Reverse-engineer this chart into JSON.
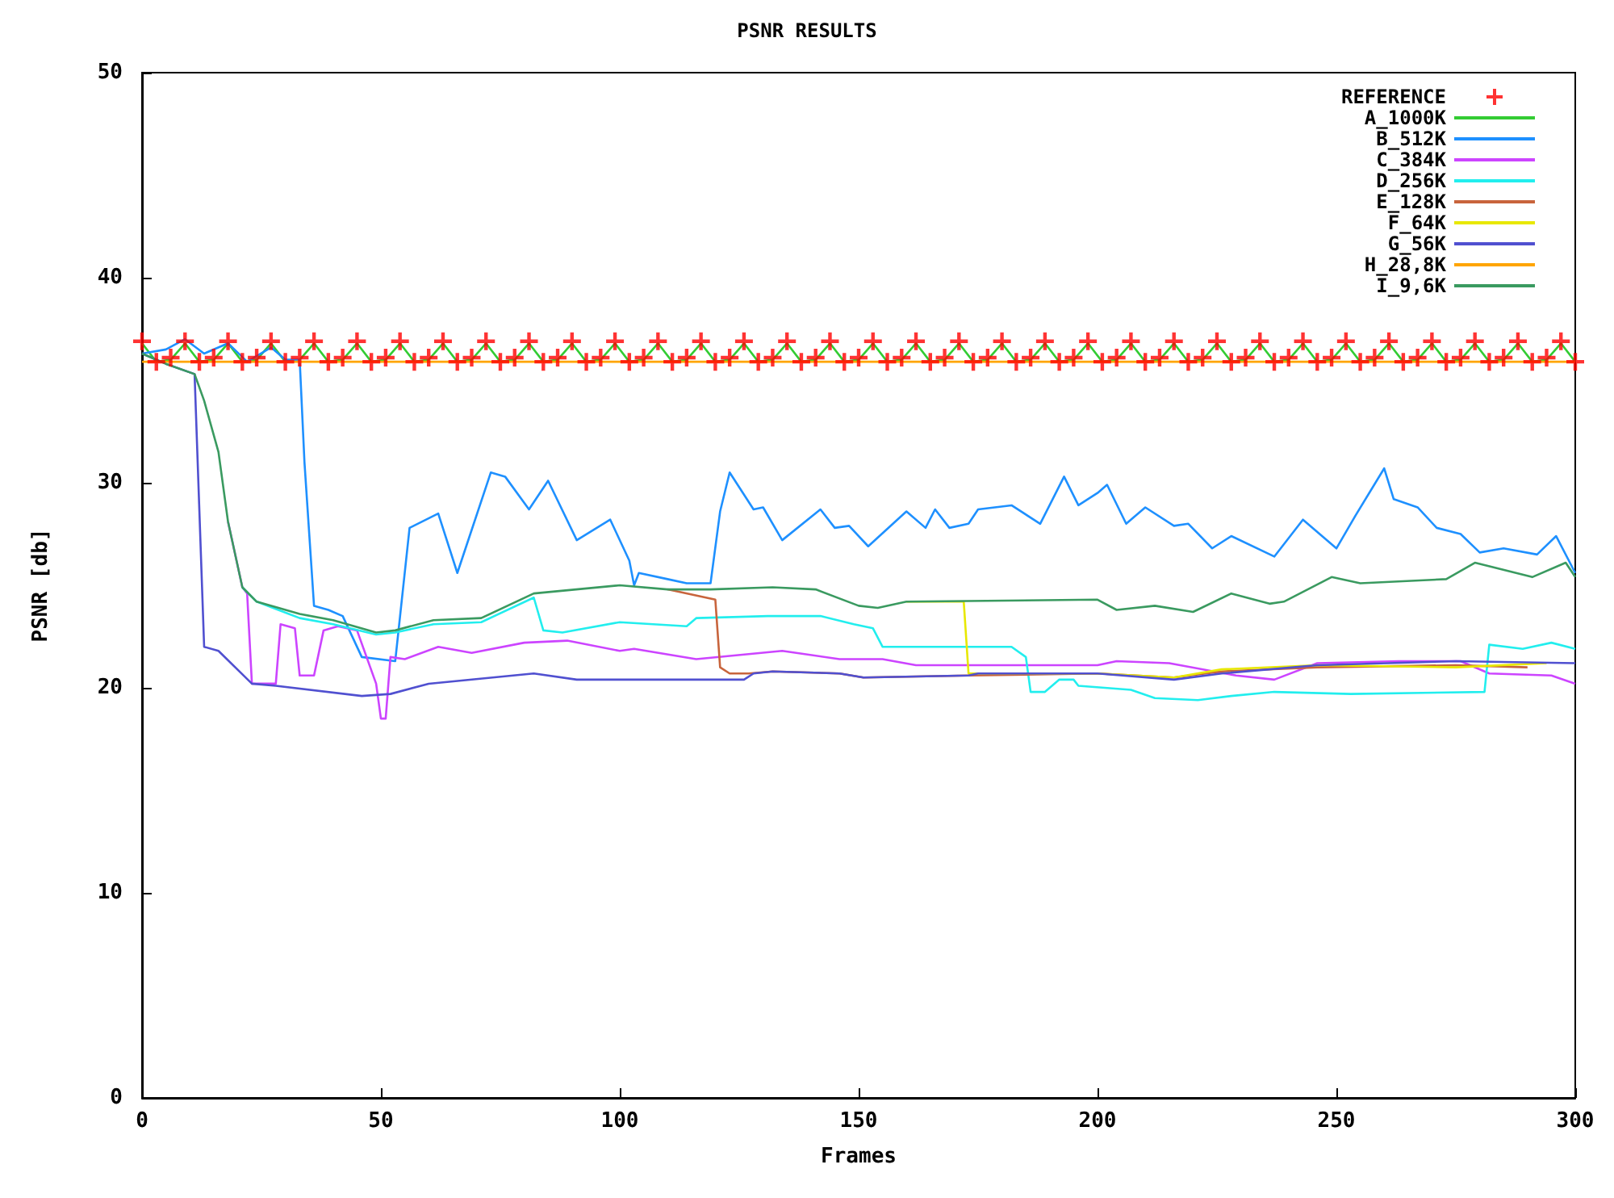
{
  "chart_data": {
    "type": "line",
    "title": "PSNR RESULTS",
    "xlabel": "Frames",
    "ylabel": "PSNR [db]",
    "xlim": [
      0,
      300
    ],
    "ylim": [
      0,
      50
    ],
    "xticks": [
      0,
      50,
      100,
      150,
      200,
      250,
      300
    ],
    "yticks": [
      0,
      10,
      20,
      30,
      40,
      50
    ],
    "legend": "top right",
    "x": [
      0,
      3,
      6,
      9,
      12,
      15,
      18,
      21,
      24,
      27,
      30,
      33,
      36,
      39,
      42,
      45,
      48,
      51,
      54,
      57,
      60,
      63,
      66,
      69,
      72,
      75,
      78,
      81,
      84,
      87,
      90,
      93,
      96,
      99,
      102,
      105,
      108,
      111,
      114,
      117,
      120,
      123,
      126,
      129,
      132,
      135,
      138,
      141,
      144,
      147,
      150,
      153,
      156,
      159,
      162,
      165,
      168,
      171,
      174,
      177,
      180,
      183,
      186,
      189,
      192,
      195,
      198,
      201,
      204,
      207,
      210,
      213,
      216,
      219,
      222,
      225,
      228,
      231,
      234,
      237,
      240,
      243,
      246,
      249,
      252,
      255,
      258,
      261,
      264,
      267,
      270,
      273,
      276,
      279,
      282,
      285,
      288,
      291,
      294,
      297,
      300
    ],
    "series": [
      {
        "name": "REFERENCE",
        "type": "scatter",
        "marker": "cross",
        "color": "#ff0000",
        "values": [
          36.9,
          35.9,
          36.1,
          36.9,
          35.9,
          36.1,
          36.9,
          35.9,
          36.1,
          36.9,
          35.9,
          36.1,
          36.9,
          35.9,
          36.1,
          36.9,
          35.9,
          36.1,
          36.9,
          35.9,
          36.1,
          36.9,
          35.9,
          36.1,
          36.9,
          35.9,
          36.1,
          36.9,
          35.9,
          36.1,
          36.9,
          35.9,
          36.1,
          36.9,
          35.9,
          36.1,
          36.9,
          35.9,
          36.1,
          36.9,
          35.9,
          36.1,
          36.9,
          35.9,
          36.1,
          36.9,
          35.9,
          36.1,
          36.9,
          35.9,
          36.1,
          36.9,
          35.9,
          36.1,
          36.9,
          35.9,
          36.1,
          36.9,
          35.9,
          36.1,
          36.9,
          35.9,
          36.1,
          36.9,
          35.9,
          36.1,
          36.9,
          35.9,
          36.1,
          36.9,
          35.9,
          36.1,
          36.9,
          35.9,
          36.1,
          36.9,
          35.9,
          36.1,
          36.9,
          35.9,
          36.1,
          36.9,
          35.9,
          36.1,
          36.9,
          35.9,
          36.1,
          36.9,
          35.9,
          36.1,
          36.9,
          35.9,
          36.1,
          36.9,
          35.9,
          36.1,
          36.9,
          35.9,
          36.1,
          36.9,
          35.9
        ]
      },
      {
        "name": "A_1000K",
        "color": "#33cc33",
        "values": [
          36.8,
          35.9,
          36.0,
          36.8,
          35.9,
          36.0,
          36.8,
          35.9,
          36.0,
          36.8,
          35.9,
          36.0,
          36.8,
          35.9,
          36.0,
          36.8,
          35.9,
          36.0,
          36.8,
          35.9,
          36.0,
          36.8,
          35.9,
          36.0,
          36.8,
          35.9,
          36.0,
          36.8,
          35.9,
          36.0,
          36.8,
          35.9,
          36.0,
          36.8,
          35.9,
          36.0,
          36.8,
          35.9,
          36.0,
          36.8,
          35.9,
          36.0,
          36.8,
          35.9,
          36.0,
          36.8,
          35.9,
          36.0,
          36.8,
          35.9,
          36.0,
          36.8,
          35.9,
          36.0,
          36.8,
          35.9,
          36.0,
          36.8,
          35.9,
          36.0,
          36.8,
          35.9,
          36.0,
          36.8,
          35.9,
          36.0,
          36.8,
          35.9,
          36.0,
          36.8,
          35.9,
          36.0,
          36.8,
          35.9,
          36.0,
          36.8,
          35.9,
          36.0,
          36.8,
          35.9,
          36.0,
          36.8,
          35.9,
          36.0,
          36.8,
          35.9,
          36.0,
          36.8,
          35.9,
          36.0,
          36.8,
          35.9,
          36.0,
          36.8,
          35.9,
          36.0,
          36.8,
          35.9,
          36.0,
          36.8,
          35.9
        ]
      },
      {
        "name": "B_512K",
        "color": "#1e90ff",
        "x": [
          0,
          5,
          9,
          13,
          18,
          22,
          27,
          30,
          33,
          34,
          36,
          39,
          42,
          46,
          53,
          56,
          62,
          66,
          73,
          76,
          81,
          85,
          91,
          98,
          102,
          103,
          104,
          110,
          114,
          119,
          121,
          123,
          128,
          130,
          134,
          142,
          145,
          148,
          152,
          160,
          164,
          166,
          169,
          173,
          175,
          182,
          188,
          193,
          196,
          200,
          202,
          206,
          210,
          216,
          219,
          224,
          228,
          237,
          243,
          250,
          254,
          260,
          262,
          267,
          271,
          276,
          280,
          285,
          292,
          296,
          300
        ],
        "values": [
          36.3,
          36.5,
          37.0,
          36.3,
          36.8,
          35.9,
          36.6,
          36.0,
          36.0,
          31.0,
          24.0,
          23.8,
          23.5,
          21.5,
          21.3,
          27.8,
          28.5,
          25.6,
          30.5,
          30.3,
          28.7,
          30.1,
          27.2,
          28.2,
          26.2,
          25.0,
          25.6,
          25.3,
          25.1,
          25.1,
          28.6,
          30.5,
          28.7,
          28.8,
          27.2,
          28.7,
          27.8,
          27.9,
          26.9,
          28.6,
          27.8,
          28.7,
          27.8,
          28.0,
          28.7,
          28.9,
          28.0,
          30.3,
          28.9,
          29.5,
          29.9,
          28.0,
          28.8,
          27.9,
          28.0,
          26.8,
          27.4,
          26.4,
          28.2,
          26.8,
          28.4,
          30.7,
          29.2,
          28.8,
          27.8,
          27.5,
          26.6,
          26.8,
          26.5,
          27.4,
          25.6
        ]
      },
      {
        "name": "C_384K",
        "color": "#cc44ff",
        "x": [
          18,
          21,
          22,
          23,
          28,
          29,
          32,
          33,
          36,
          38,
          41,
          45,
          49,
          50,
          51,
          52,
          55,
          62,
          69,
          80,
          89,
          100,
          103,
          116,
          134,
          146,
          155,
          162,
          180,
          200,
          204,
          215,
          229,
          237,
          246,
          263,
          276,
          282,
          295,
          300
        ],
        "values": [
          28.1,
          24.9,
          24.6,
          20.2,
          20.2,
          23.1,
          22.9,
          20.6,
          20.6,
          22.8,
          23.0,
          22.8,
          20.2,
          18.5,
          18.5,
          21.5,
          21.4,
          22.0,
          21.7,
          22.2,
          22.3,
          21.8,
          21.9,
          21.4,
          21.8,
          21.4,
          21.4,
          21.1,
          21.1,
          21.1,
          21.3,
          21.2,
          20.6,
          20.4,
          21.2,
          21.3,
          21.3,
          20.7,
          20.6,
          20.2
        ]
      },
      {
        "name": "D_256K",
        "color": "#22eeee",
        "x": [
          21,
          24,
          33,
          40,
          49,
          53,
          61,
          71,
          82,
          84,
          88,
          100,
          114,
          116,
          131,
          142,
          149,
          153,
          155,
          171,
          182,
          185,
          186,
          189,
          192,
          195,
          196,
          207,
          212,
          221,
          228,
          237,
          253,
          281,
          282,
          289,
          295,
          300
        ],
        "values": [
          24.9,
          24.2,
          23.4,
          23.1,
          22.6,
          22.7,
          23.1,
          23.2,
          24.4,
          22.8,
          22.7,
          23.2,
          23.0,
          23.4,
          23.5,
          23.5,
          23.1,
          22.9,
          22.0,
          22.0,
          22.0,
          21.5,
          19.8,
          19.8,
          20.4,
          20.4,
          20.1,
          19.9,
          19.5,
          19.4,
          19.6,
          19.8,
          19.7,
          19.8,
          22.1,
          21.9,
          22.2,
          21.9
        ]
      },
      {
        "name": "E_128K",
        "color": "#c8643c",
        "x": [
          110,
          120,
          121,
          123,
          127,
          132,
          146,
          151,
          173,
          200,
          216,
          226,
          246,
          275,
          290
        ],
        "values": [
          24.8,
          24.3,
          21.0,
          20.7,
          20.7,
          20.8,
          20.7,
          20.5,
          20.6,
          20.7,
          20.5,
          20.8,
          21.0,
          21.1,
          21.0
        ]
      },
      {
        "name": "F_64K",
        "color": "#e8e800",
        "x": [
          160,
          172,
          173,
          200,
          216,
          226,
          246,
          275,
          294
        ],
        "values": [
          24.2,
          24.2,
          20.7,
          20.7,
          20.5,
          20.9,
          21.1,
          21.0,
          21.2
        ]
      },
      {
        "name": "G_56K",
        "color": "#5050d0",
        "x": [
          0,
          5,
          11,
          13,
          16,
          23,
          28,
          46,
          52,
          60,
          82,
          91,
          100,
          120,
          126,
          128,
          132,
          146,
          151,
          173,
          175,
          200,
          216,
          226,
          246,
          275,
          300
        ],
        "values": [
          36.3,
          35.8,
          35.3,
          22.0,
          21.8,
          20.2,
          20.1,
          19.6,
          19.7,
          20.2,
          20.7,
          20.4,
          20.4,
          20.4,
          20.4,
          20.7,
          20.8,
          20.7,
          20.5,
          20.6,
          20.7,
          20.7,
          20.4,
          20.7,
          21.1,
          21.3,
          21.2
        ]
      },
      {
        "name": "H_28,8K",
        "color": "#ffa500",
        "x": [
          0,
          100,
          200,
          300
        ],
        "values": [
          35.9,
          35.9,
          35.9,
          35.9
        ]
      },
      {
        "name": "I_9,6K",
        "color": "#3a9a60",
        "x": [
          0,
          5,
          11,
          13,
          16,
          18,
          21,
          24,
          33,
          40,
          49,
          53,
          61,
          71,
          82,
          100,
          110,
          119,
          132,
          141,
          150,
          154,
          160,
          200,
          204,
          212,
          220,
          228,
          236,
          239,
          249,
          255,
          273,
          279,
          291,
          298,
          300
        ],
        "values": [
          36.3,
          35.8,
          35.3,
          34,
          31.5,
          28.1,
          24.9,
          24.2,
          23.6,
          23.3,
          22.7,
          22.8,
          23.3,
          23.4,
          24.6,
          25.0,
          24.8,
          24.8,
          24.9,
          24.8,
          24.0,
          23.9,
          24.2,
          24.3,
          23.8,
          24.0,
          23.7,
          24.6,
          24.1,
          24.2,
          25.4,
          25.1,
          25.3,
          26.1,
          25.4,
          26.1,
          25.4
        ]
      }
    ]
  }
}
